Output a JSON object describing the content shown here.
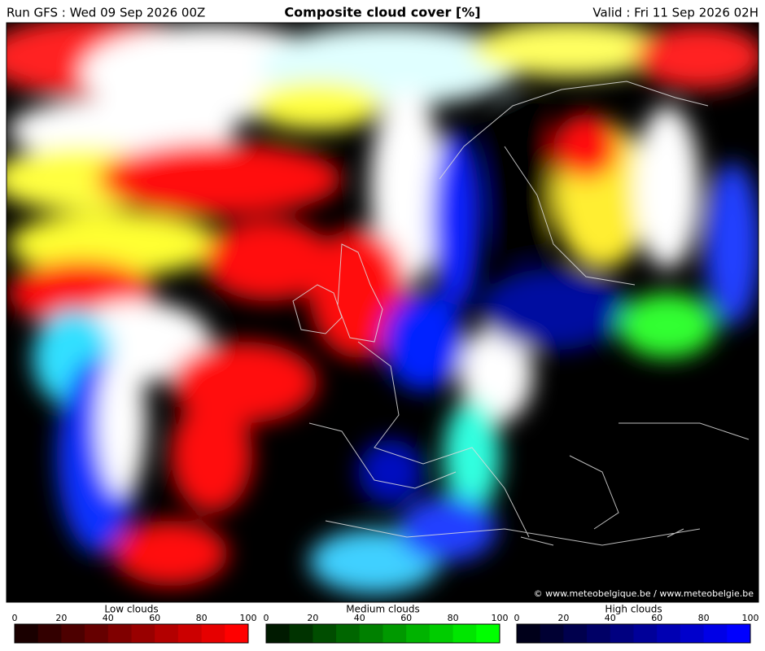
{
  "header": {
    "run": "Run GFS : Wed 09 Sep 2026 00Z",
    "title": "Composite cloud cover [%]",
    "valid": "Valid : Fri 11 Sep 2026 02H"
  },
  "map": {
    "credit": "© www.meteobelgique.be / www.meteobelgie.be"
  },
  "legends": [
    {
      "title": "Low clouds",
      "ticks": [
        0,
        20,
        40,
        60,
        80,
        100
      ],
      "colors": [
        "#1a0000",
        "#330000",
        "#4d0000",
        "#660000",
        "#800000",
        "#990000",
        "#b30000",
        "#cc0000",
        "#e60000",
        "#ff0000"
      ]
    },
    {
      "title": "Medium clouds",
      "ticks": [
        0,
        20,
        40,
        60,
        80,
        100
      ],
      "colors": [
        "#001a00",
        "#003300",
        "#004d00",
        "#006600",
        "#008000",
        "#009900",
        "#00b300",
        "#00cc00",
        "#00e600",
        "#00ff00"
      ]
    },
    {
      "title": "High clouds",
      "ticks": [
        0,
        20,
        40,
        60,
        80,
        100
      ],
      "colors": [
        "#00001a",
        "#000033",
        "#00004d",
        "#000066",
        "#000080",
        "#000099",
        "#0000b3",
        "#0000cc",
        "#0000e6",
        "#0000ff"
      ]
    }
  ]
}
